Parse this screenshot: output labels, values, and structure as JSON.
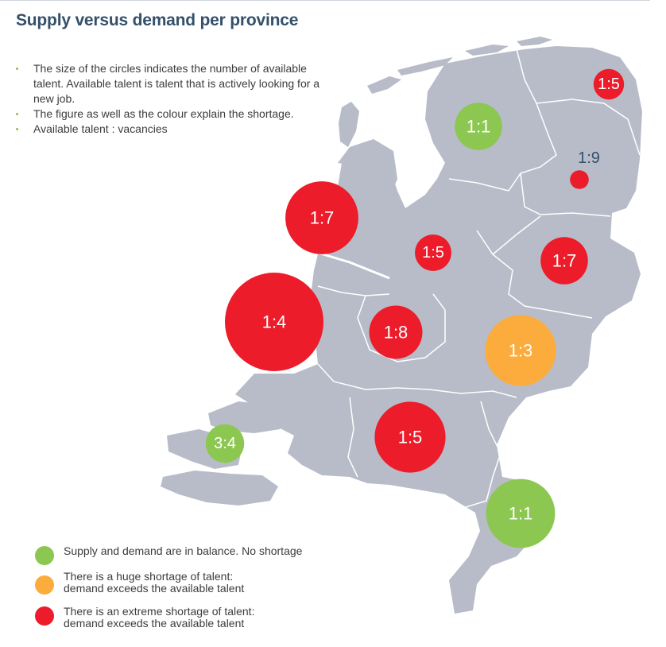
{
  "title": "Supply versus demand per province",
  "notes": [
    "The size of the circles indicates the number of available talent. Available talent is talent that is actively looking for a new job.",
    "The figure as well as the colour explain the shortage.",
    "Available talent : vacancies"
  ],
  "colors": {
    "land": "#b8bcc8",
    "border": "#ffffff",
    "balance": "#8cc751",
    "huge": "#fbac3c",
    "extreme": "#ec1c2a",
    "title": "#34506b",
    "dark_label": "#34506b"
  },
  "provinces": [
    {
      "ratio": "1:5",
      "status": "extreme",
      "available_talent_size": 0.31
    },
    {
      "ratio": "1:1",
      "status": "balance",
      "available_talent_size": 0.48
    },
    {
      "ratio": "1:9",
      "status": "extreme",
      "available_talent_size": 0.19
    },
    {
      "ratio": "1:7",
      "status": "extreme",
      "available_talent_size": 0.74
    },
    {
      "ratio": "1:5",
      "status": "extreme",
      "available_talent_size": 0.37
    },
    {
      "ratio": "1:7",
      "status": "extreme",
      "available_talent_size": 0.48
    },
    {
      "ratio": "1:4",
      "status": "extreme",
      "available_talent_size": 1.0
    },
    {
      "ratio": "1:8",
      "status": "extreme",
      "available_talent_size": 0.54
    },
    {
      "ratio": "1:3",
      "status": "huge",
      "available_talent_size": 0.72
    },
    {
      "ratio": "3:4",
      "status": "balance",
      "available_talent_size": 0.39
    },
    {
      "ratio": "1:5",
      "status": "extreme",
      "available_talent_size": 0.72
    },
    {
      "ratio": "1:1",
      "status": "balance",
      "available_talent_size": 0.7
    }
  ],
  "legend": [
    {
      "status": "balance",
      "lines": [
        "Supply and demand are in balance. No shortage"
      ]
    },
    {
      "status": "huge",
      "lines": [
        "There is a huge shortage of talent:",
        "demand exceeds the available talent"
      ]
    },
    {
      "status": "extreme",
      "lines": [
        "There is an extreme shortage of talent:",
        "demand exceeds the available talent"
      ]
    }
  ]
}
